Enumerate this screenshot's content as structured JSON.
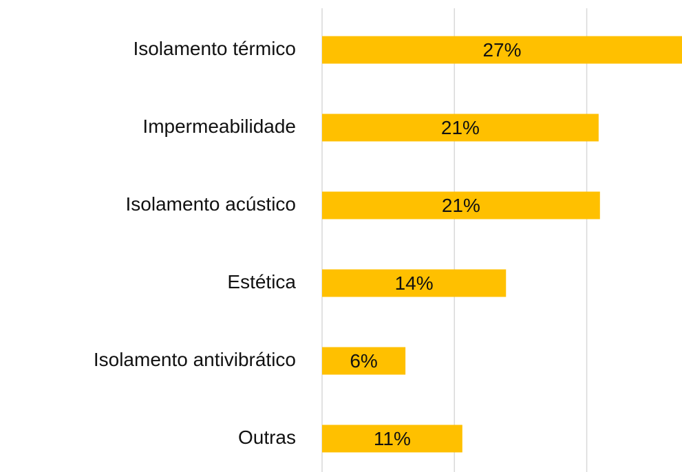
{
  "chart_data": {
    "type": "barh",
    "categories": [
      "Isolamento térmico",
      "Impermeabilidade",
      "Isolamento acústico",
      "Estética",
      "Isolamento antivibrático",
      "Outras"
    ],
    "values": [
      27.2,
      20.9,
      21.0,
      13.9,
      6.3,
      10.6
    ],
    "value_labels": [
      "27%",
      "21%",
      "21%",
      "14%",
      "6%",
      "11%"
    ],
    "color": "#ffc000",
    "xlim": [
      0,
      27.2
    ],
    "xticks": [
      0,
      10,
      20
    ],
    "grid": true
  }
}
